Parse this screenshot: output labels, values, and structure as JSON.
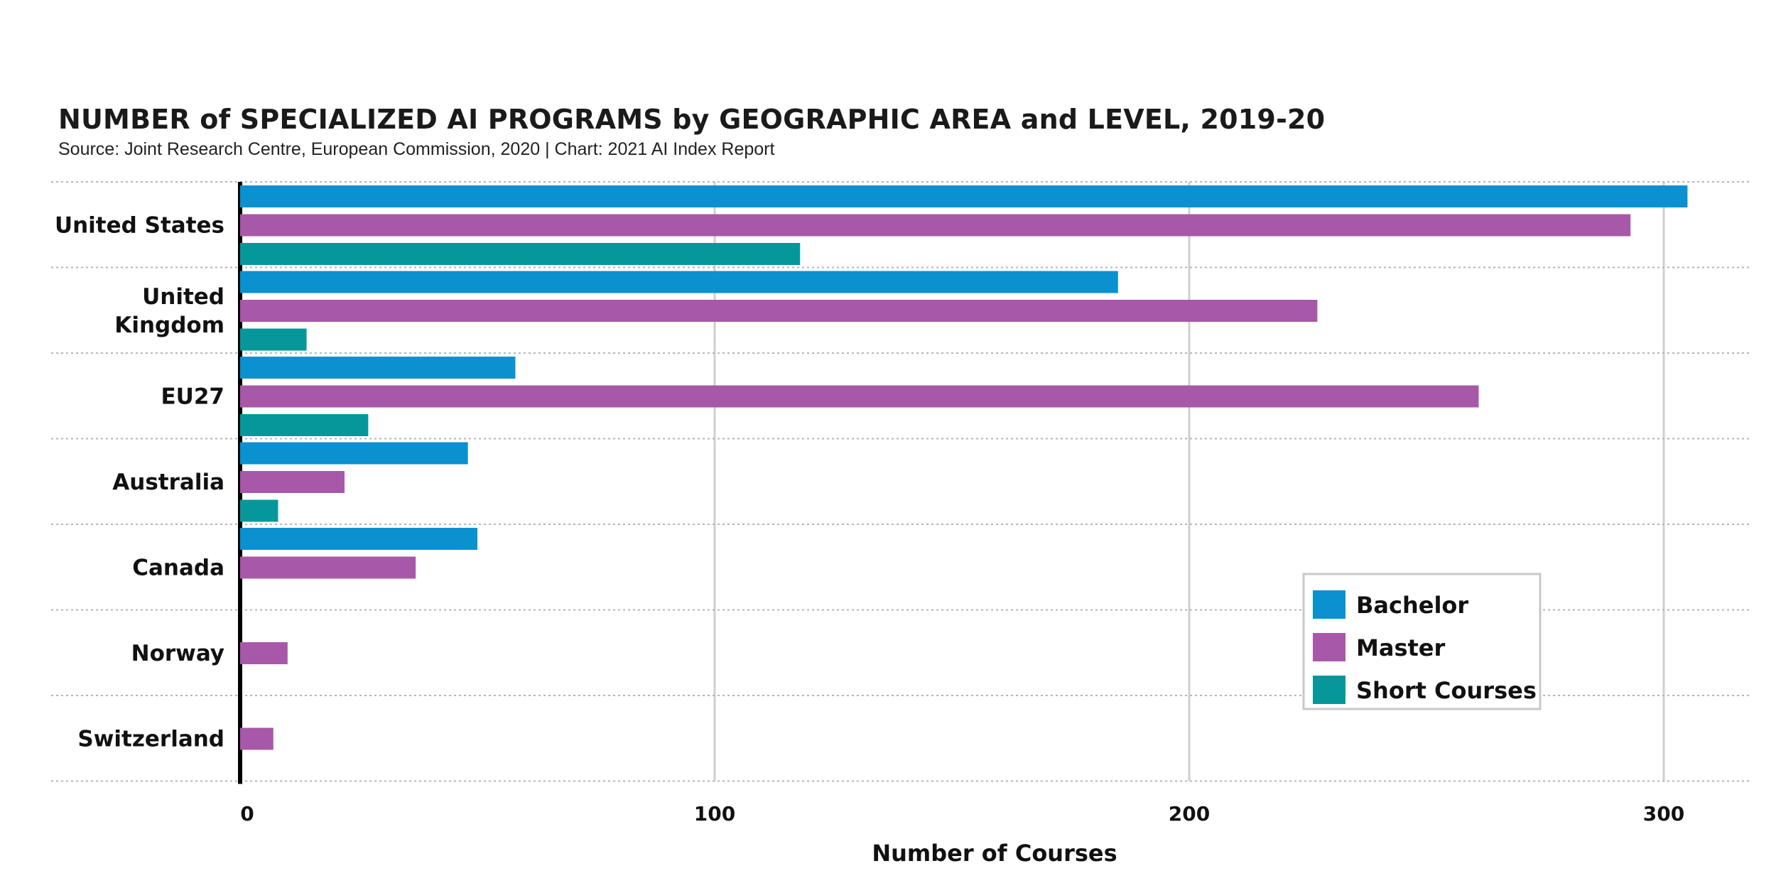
{
  "chart_data": {
    "type": "bar",
    "orientation": "horizontal",
    "title": "NUMBER of SPECIALIZED AI PROGRAMS by GEOGRAPHIC AREA and LEVEL, 2019-20",
    "subtitle": "Source: Joint Research Centre, European Commission, 2020 | Chart: 2021 AI Index Report",
    "xlabel": "Number of Courses",
    "ylabel": "",
    "xlim": [
      0,
      320
    ],
    "xticks": [
      0,
      100,
      200,
      300
    ],
    "grid": true,
    "legend_position": "bottom-right",
    "categories": [
      [
        "United States"
      ],
      [
        "United",
        "Kingdom"
      ],
      [
        "EU27"
      ],
      [
        "Australia"
      ],
      [
        "Canada"
      ],
      [
        "Norway"
      ],
      [
        "Switzerland"
      ]
    ],
    "series": [
      {
        "name": "Bachelor",
        "color": "#0b91cf",
        "values": [
          305,
          185,
          58,
          48,
          50,
          0,
          0
        ]
      },
      {
        "name": "Master",
        "color": "#a858a8",
        "values": [
          293,
          227,
          261,
          22,
          37,
          10,
          7
        ]
      },
      {
        "name": "Short Courses",
        "color": "#06979a",
        "values": [
          118,
          14,
          27,
          8,
          0,
          0,
          0
        ]
      }
    ]
  }
}
